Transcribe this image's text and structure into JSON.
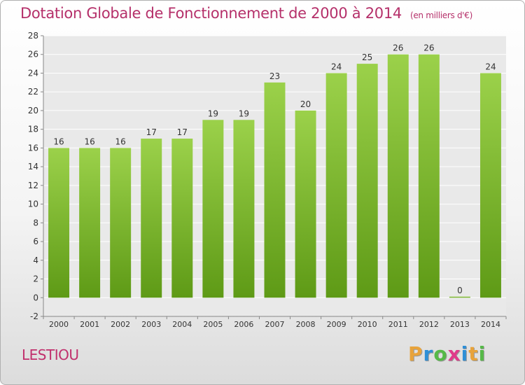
{
  "title": "Dotation Globale de Fonctionnement de 2000 à 2014",
  "unit_note": "(en milliers d'€)",
  "commune": "LESTIOU",
  "logo": {
    "letters": [
      "P",
      "r",
      "o",
      "x",
      "i",
      "t",
      "i"
    ],
    "colors": [
      "#e8a33b",
      "#2e8fd6",
      "#56b948",
      "#e03b8a",
      "#2e8fd6",
      "#e8a33b",
      "#56b948"
    ]
  },
  "chart_data": {
    "type": "bar",
    "title": "Dotation Globale de Fonctionnement de 2000 à 2014",
    "xlabel": "",
    "ylabel": "",
    "categories": [
      "2000",
      "2001",
      "2002",
      "2003",
      "2004",
      "2005",
      "2006",
      "2007",
      "2008",
      "2009",
      "2010",
      "2011",
      "2012",
      "2013",
      "2014"
    ],
    "values": [
      16,
      16,
      16,
      17,
      17,
      19,
      19,
      23,
      20,
      24,
      25,
      26,
      26,
      0,
      24
    ],
    "ylim": [
      -2,
      28
    ],
    "yticks": [
      -2,
      0,
      2,
      4,
      6,
      8,
      10,
      12,
      14,
      16,
      18,
      20,
      22,
      24,
      26,
      28
    ],
    "grid": true,
    "bar_color": "#7cb92e",
    "bar_color_light": "#9bd14a",
    "bar_color_dark": "#5e9a16",
    "title_color": "#b5306a"
  }
}
